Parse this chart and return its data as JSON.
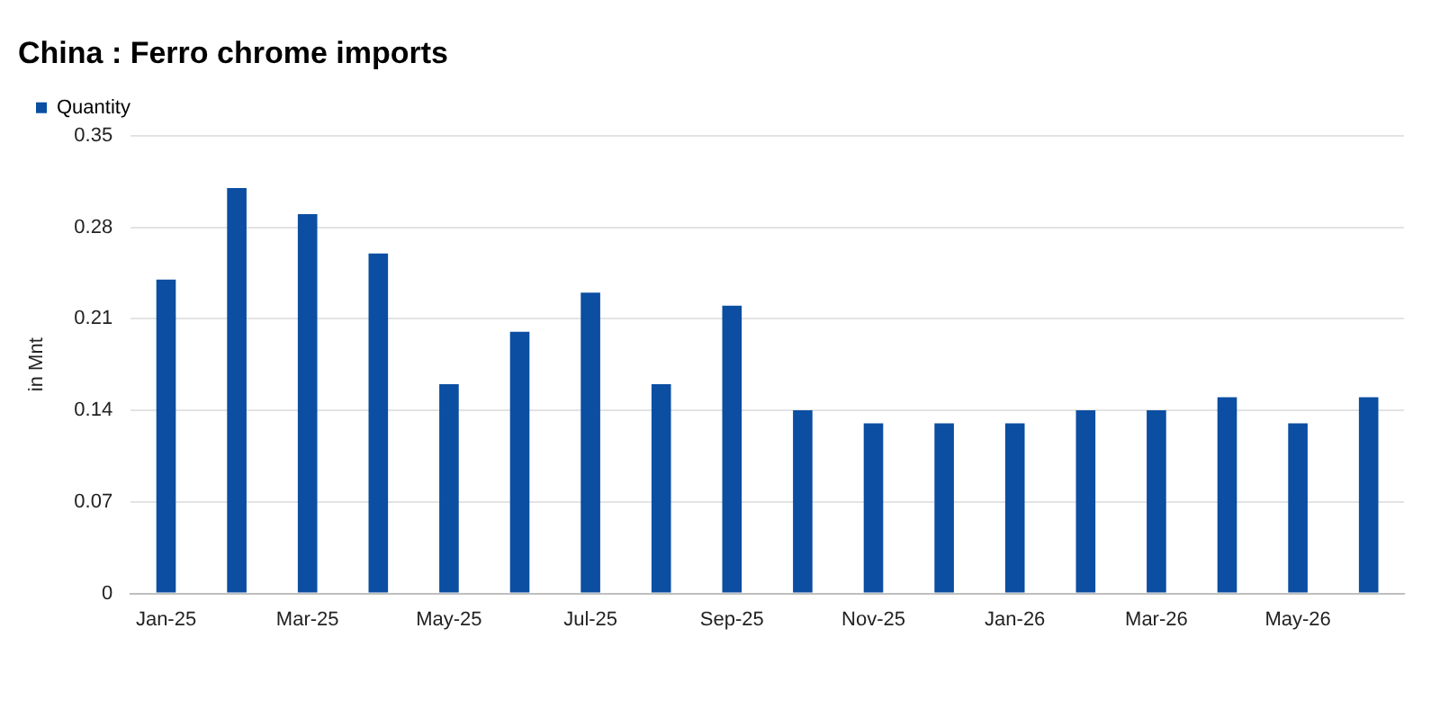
{
  "chart_data": {
    "type": "bar",
    "title": "China : Ferro chrome imports",
    "ylabel": "in Mnt",
    "categories": [
      "Jan-25",
      null,
      "Mar-25",
      null,
      "May-25",
      null,
      "Jul-25",
      null,
      "Sep-25",
      null,
      "Nov-25",
      null,
      "Jan-26",
      null,
      "Mar-26",
      null,
      "May-26",
      null
    ],
    "series": [
      {
        "name": "Quantity",
        "color": "#0b4ea2",
        "values": [
          0.24,
          0.31,
          0.29,
          0.26,
          0.16,
          0.2,
          0.23,
          0.16,
          0.22,
          0.14,
          0.13,
          0.13,
          0.13,
          0.14,
          0.14,
          0.15,
          0.13,
          0.15
        ]
      }
    ],
    "ylim": [
      0,
      0.35
    ],
    "yticks": [
      0,
      0.07,
      0.14,
      0.21,
      0.28,
      0.35
    ],
    "grid": "y",
    "legend": "top left"
  }
}
